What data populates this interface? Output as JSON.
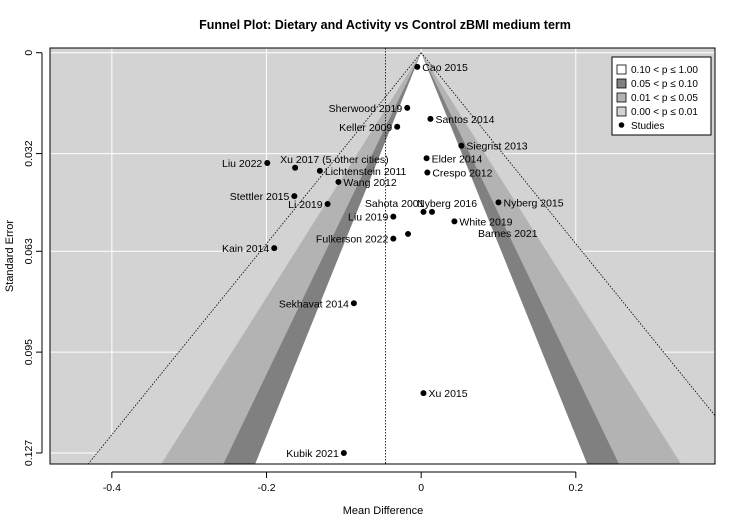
{
  "chart_data": {
    "type": "scatter",
    "subtype": "funnel",
    "title": "Funnel Plot: Dietary and Activity vs Control zBMI medium term",
    "xlabel": "Mean Difference",
    "ylabel": "Standard Error",
    "xlim": [
      -0.48,
      0.38
    ],
    "ylim": [
      0.1305,
      -0.0015
    ],
    "y_inverted": true,
    "x_ticks": [
      -0.4,
      -0.2,
      0,
      0.2
    ],
    "x_tick_labels": [
      "-0.4",
      "-0.2",
      "0",
      "0.2"
    ],
    "y_ticks": [
      0,
      0.032,
      0.063,
      0.095,
      0.127
    ],
    "y_tick_labels": [
      "0",
      "0.032",
      "0.063",
      "0.095",
      "0.127"
    ],
    "grid": true,
    "background": "#d3d3d3",
    "center_line": -0.046,
    "funnel_apex_x": 0,
    "funnel_bands": [
      {
        "label": "0.10 < p ≤ 1.00",
        "z": 1.645,
        "color": "#ffffff"
      },
      {
        "label": "0.05 < p ≤ 0.10",
        "z": 1.96,
        "color": "#808080"
      },
      {
        "label": "0.01 < p ≤ 0.05",
        "z": 2.576,
        "color": "#b3b3b3"
      },
      {
        "label": "0.00 < p ≤ 0.01",
        "z": 3.3,
        "color": "#d3d3d3"
      }
    ],
    "legend_position": "top-right",
    "legend_points_label": "Studies",
    "studies": [
      {
        "name": "Cao 2015",
        "x": -0.005,
        "y": 0.0045,
        "side": "right"
      },
      {
        "name": "Sherwood 2019",
        "x": -0.018,
        "y": 0.0175,
        "side": "left"
      },
      {
        "name": "Santos 2014",
        "x": 0.012,
        "y": 0.021,
        "side": "right"
      },
      {
        "name": "Keller 2009",
        "x": -0.031,
        "y": 0.0235,
        "side": "left"
      },
      {
        "name": "Siegrist 2013",
        "x": 0.052,
        "y": 0.0295,
        "side": "right"
      },
      {
        "name": "Liu 2022",
        "x": -0.199,
        "y": 0.035,
        "side": "left"
      },
      {
        "name": "Xu 2017 (5 other cities)",
        "x": -0.163,
        "y": 0.0365,
        "side": "right-up"
      },
      {
        "name": "Elder 2014",
        "x": 0.007,
        "y": 0.0335,
        "side": "right"
      },
      {
        "name": "Lichtenstein 2011",
        "x": -0.131,
        "y": 0.0375,
        "side": "right"
      },
      {
        "name": "Crespo 2012",
        "x": 0.008,
        "y": 0.038,
        "side": "right"
      },
      {
        "name": "Wang 2012",
        "x": -0.107,
        "y": 0.041,
        "side": "right"
      },
      {
        "name": "Stettler 2015",
        "x": -0.164,
        "y": 0.0455,
        "side": "left"
      },
      {
        "name": "Li 2019",
        "x": -0.121,
        "y": 0.048,
        "side": "left"
      },
      {
        "name": "Nyberg 2015",
        "x": 0.1,
        "y": 0.0475,
        "side": "right"
      },
      {
        "name": "Sahota 2001",
        "x": 0.003,
        "y": 0.0505,
        "side": "left-up"
      },
      {
        "name": "Nyberg 2016",
        "x": 0.014,
        "y": 0.0505,
        "side": "right-up"
      },
      {
        "name": "Liu 2019",
        "x": -0.036,
        "y": 0.052,
        "side": "left"
      },
      {
        "name": "White 2019",
        "x": 0.043,
        "y": 0.0535,
        "side": "right"
      },
      {
        "name": "Barnes 2021",
        "x": -0.017,
        "y": 0.0575,
        "side": "far-right"
      },
      {
        "name": "Fulkerson 2022",
        "x": -0.036,
        "y": 0.059,
        "side": "left"
      },
      {
        "name": "Kain 2014",
        "x": -0.19,
        "y": 0.062,
        "side": "left"
      },
      {
        "name": "Sekhavat 2014",
        "x": -0.087,
        "y": 0.0795,
        "side": "left"
      },
      {
        "name": "Xu 2015",
        "x": 0.003,
        "y": 0.108,
        "side": "right"
      },
      {
        "name": "Kubik 2021",
        "x": -0.1,
        "y": 0.127,
        "side": "left"
      }
    ]
  }
}
